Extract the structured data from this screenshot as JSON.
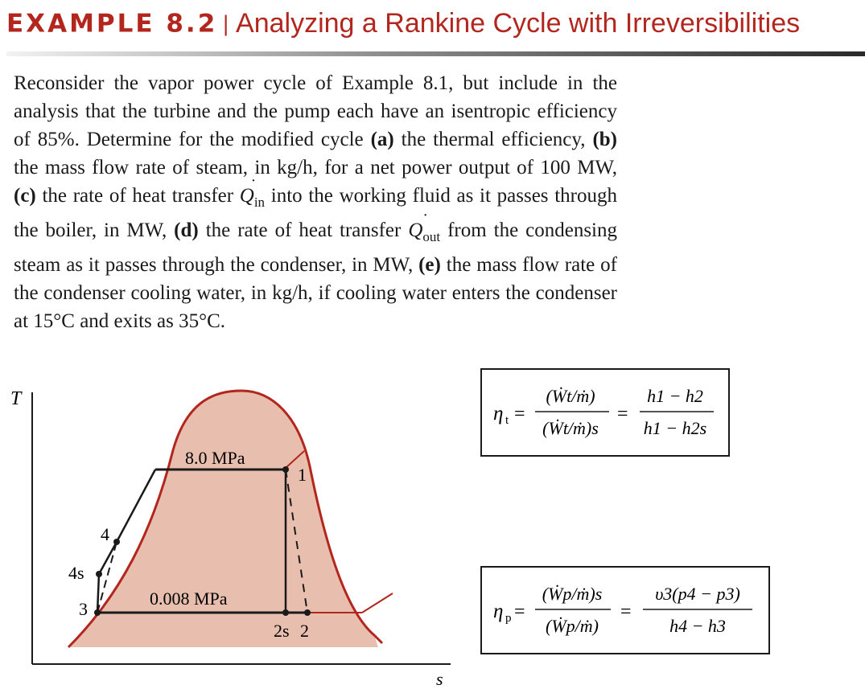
{
  "header": {
    "label": "EXAMPLE 8.2",
    "separator": "|",
    "title": "Analyzing a Rankine Cycle with Irreversibilities"
  },
  "problem": {
    "intro": "Reconsider the vapor power cycle of Example 8.1, but include in the analysis that the turbine and the pump each have an isentropic efficiency of 85%. Determine for the modified cycle ",
    "a_label": "(a)",
    "a_text": " the thermal efficiency, ",
    "b_label": "(b)",
    "b_text": " the mass flow rate of steam, in kg/h, for a net power output of 100 MW, ",
    "c_label": "(c)",
    "c_text_1": " the rate of heat transfer ",
    "q_in_symbol": "Q",
    "q_in_sub": "in",
    "c_text_2": " into the working fluid as it passes through the boiler, in MW, ",
    "d_label": "(d)",
    "d_text_1": " the rate of heat transfer ",
    "q_out_symbol": "Q",
    "q_out_sub": "out",
    "d_text_2": " from the condensing steam as it passes through the condenser, in MW, ",
    "e_label": "(e)",
    "e_text": " the mass flow rate of the condenser cooling water, in kg/h, if cooling water enters the condenser at 15°C and exits as 35°C."
  },
  "diagram": {
    "axis_y_label": "T",
    "axis_x_label": "s",
    "high_pressure": "8.0 MPa",
    "low_pressure": "0.008 MPa",
    "state_1": "1",
    "state_2": "2",
    "state_2s": "2s",
    "state_3": "3",
    "state_4": "4",
    "state_4s": "4s",
    "dome_color": "#e8bfae",
    "dome_outline_color": "#b3261e"
  },
  "turbine_efficiency": {
    "eta": "η",
    "eta_sub": "t",
    "frac1_num": "(Ẇt/ṁ)",
    "frac1_den": "(Ẇt/ṁ)s",
    "frac2_num": "h1 − h2",
    "frac2_den": "h1 − h2s",
    "equals": "="
  },
  "pump_efficiency": {
    "eta": "η",
    "eta_sub": "p",
    "frac1_num": "(Ẇp/ṁ)s",
    "frac1_den": "(Ẇp/ṁ)",
    "frac2_num": "υ3(p4 − p3)",
    "frac2_den": "h4 − h3",
    "equals": "="
  }
}
